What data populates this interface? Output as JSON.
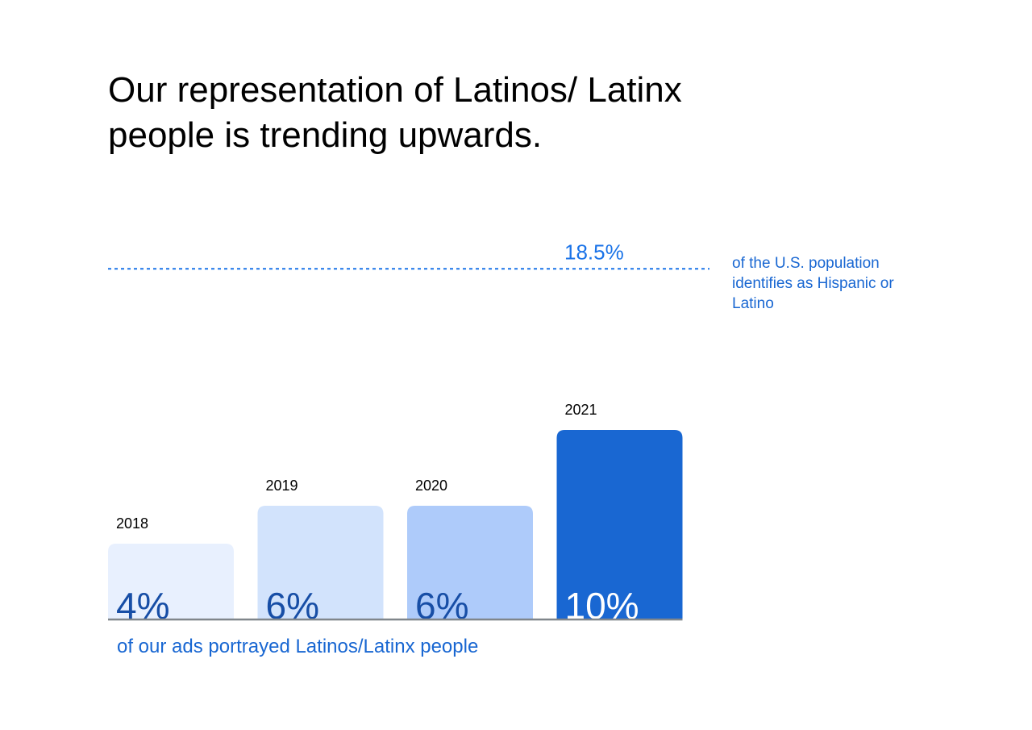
{
  "chart_data": {
    "type": "bar",
    "title": "Our representation of Latinos/ Latinx people is trending upwards.",
    "categories": [
      "2018",
      "2019",
      "2020",
      "2021"
    ],
    "values": [
      4,
      6,
      6,
      10
    ],
    "value_labels": [
      "4%",
      "6%",
      "6%",
      "10%"
    ],
    "colors": [
      "#e8f0fe",
      "#d2e3fc",
      "#aecbfa",
      "#1967d2"
    ],
    "caption": "of our ads portrayed Latinos/Latinx people",
    "reference_line": {
      "value": 18.5,
      "label": "18.5%",
      "note": "of the U.S. population identifies as Hispanic or Latino",
      "color": "#1a73e8"
    }
  }
}
